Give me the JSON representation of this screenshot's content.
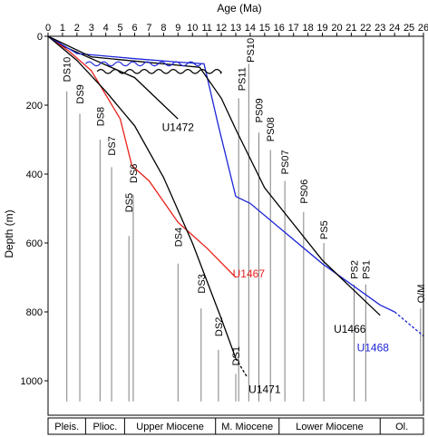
{
  "chart_data": {
    "type": "line",
    "xlabel": "Age (Ma)",
    "ylabel": "Depth (m)",
    "xlim": [
      0,
      26
    ],
    "ylim": [
      0,
      1100
    ],
    "x_ticks": [
      0,
      1,
      2,
      3,
      4,
      5,
      6,
      7,
      8,
      9,
      10,
      11,
      12,
      13,
      14,
      15,
      16,
      17,
      18,
      19,
      20,
      21,
      22,
      23,
      24,
      25,
      26
    ],
    "y_ticks": [
      0,
      200,
      400,
      600,
      800,
      1000
    ],
    "grid": false,
    "colors": {
      "black": "#000000",
      "red": "#e8201b",
      "blue": "#1c25d6",
      "marker": "#808080"
    },
    "markers": [
      {
        "label": "DS10",
        "age": 1.3,
        "top": 60
      },
      {
        "label": "DS9",
        "age": 2.2,
        "top": 140
      },
      {
        "label": "DS8",
        "age": 3.6,
        "top": 205
      },
      {
        "label": "DS7",
        "age": 4.4,
        "top": 290
      },
      {
        "label": "DS6",
        "age": 5.9,
        "top": 370
      },
      {
        "label": "DS5",
        "age": 5.6,
        "top": 455
      },
      {
        "label": "DS4",
        "age": 9.0,
        "top": 555
      },
      {
        "label": "DS3",
        "age": 10.6,
        "top": 690
      },
      {
        "label": "DS2",
        "age": 11.8,
        "top": 815
      },
      {
        "label": "DS1",
        "age": 13.0,
        "top": 900
      },
      {
        "label": "PS10",
        "age": 14.0,
        "top": 5
      },
      {
        "label": "PS11",
        "age": 13.4,
        "top": 90
      },
      {
        "label": "PS09",
        "age": 14.6,
        "top": 180
      },
      {
        "label": "PS08",
        "age": 15.4,
        "top": 235
      },
      {
        "label": "PS07",
        "age": 16.4,
        "top": 330
      },
      {
        "label": "PS06",
        "age": 17.7,
        "top": 415
      },
      {
        "label": "PS5",
        "age": 19.1,
        "top": 535
      },
      {
        "label": "PS2",
        "age": 21.2,
        "top": 650
      },
      {
        "label": "PS1",
        "age": 22.0,
        "top": 650
      },
      {
        "label": "O/M",
        "age": 25.8,
        "top": 720
      }
    ],
    "marker_lines": [
      {
        "age": 1.3,
        "from": 160,
        "to": 1060
      },
      {
        "age": 2.2,
        "from": 225,
        "to": 1060
      },
      {
        "age": 3.6,
        "from": 300,
        "to": 1060
      },
      {
        "age": 4.4,
        "from": 380,
        "to": 1060
      },
      {
        "age": 5.6,
        "from": 580,
        "to": 1060
      },
      {
        "age": 5.9,
        "from": 460,
        "to": 1060
      },
      {
        "age": 9.0,
        "from": 660,
        "to": 1060
      },
      {
        "age": 10.6,
        "from": 790,
        "to": 1060
      },
      {
        "age": 11.8,
        "from": 910,
        "to": 1060
      },
      {
        "age": 13.0,
        "from": 980,
        "to": 1060
      },
      {
        "age": 13.2,
        "from": 180,
        "to": 1060
      },
      {
        "age": 13.9,
        "from": 80,
        "to": 1060
      },
      {
        "age": 14.6,
        "from": 280,
        "to": 1060
      },
      {
        "age": 15.4,
        "from": 330,
        "to": 1060
      },
      {
        "age": 16.4,
        "from": 420,
        "to": 1060
      },
      {
        "age": 17.7,
        "from": 510,
        "to": 1060
      },
      {
        "age": 19.1,
        "from": 600,
        "to": 1060
      },
      {
        "age": 21.2,
        "from": 720,
        "to": 1060
      },
      {
        "age": 22.0,
        "from": 720,
        "to": 1060
      },
      {
        "age": 25.8,
        "from": 790,
        "to": 1060
      }
    ],
    "series": [
      {
        "name": "U1472",
        "color": "#000000",
        "label_age": 9.0,
        "label_depth": 275,
        "points": [
          [
            0,
            0
          ],
          [
            1,
            28
          ],
          [
            3,
            65
          ],
          [
            6,
            120
          ],
          [
            9,
            240
          ]
        ],
        "dashed_tail": []
      },
      {
        "name": "U1467",
        "color": "#e8201b",
        "label_age": 13.9,
        "label_depth": 700,
        "points": [
          [
            0,
            0
          ],
          [
            1.5,
            45
          ],
          [
            3,
            100
          ],
          [
            5,
            240
          ],
          [
            5.8,
            375
          ],
          [
            7,
            420
          ],
          [
            9,
            540
          ],
          [
            11,
            615
          ],
          [
            13,
            700
          ]
        ],
        "dashed_tail": []
      },
      {
        "name": "U1471",
        "color": "#000000",
        "label_age": 15.0,
        "label_depth": 1035,
        "points": [
          [
            0,
            0
          ],
          [
            2,
            70
          ],
          [
            4,
            160
          ],
          [
            6,
            260
          ],
          [
            8,
            410
          ],
          [
            10,
            600
          ],
          [
            12,
            820
          ],
          [
            13,
            935
          ]
        ],
        "dashed_tail": [
          [
            13,
            935
          ],
          [
            13.8,
            990
          ]
        ]
      },
      {
        "name": "U1468",
        "color": "#1c25d6",
        "label_age": 22.5,
        "label_depth": 915,
        "points": [
          [
            0,
            0
          ],
          [
            2,
            50
          ],
          [
            6,
            65
          ],
          [
            9,
            75
          ],
          [
            10.8,
            80
          ],
          [
            11.8,
            260
          ],
          [
            13,
            465
          ],
          [
            14,
            485
          ],
          [
            19,
            660
          ],
          [
            23,
            780
          ],
          [
            24,
            800
          ]
        ],
        "dashed_tail": [
          [
            24,
            800
          ],
          [
            26,
            870
          ]
        ]
      },
      {
        "name": "U1466",
        "color": "#000000",
        "label_age": 20.9,
        "label_depth": 860,
        "points": [
          [
            0,
            0
          ],
          [
            3,
            60
          ],
          [
            10.5,
            90
          ],
          [
            12,
            180
          ],
          [
            13,
            270
          ],
          [
            15,
            440
          ],
          [
            19,
            650
          ],
          [
            23,
            810
          ]
        ],
        "dashed_tail": []
      }
    ],
    "wavy_hiatuses": [
      {
        "color": "#1c25d6",
        "age_from": 2.6,
        "age_to": 10.6,
        "depth": 80
      },
      {
        "color": "#000000",
        "age_from": 3.4,
        "age_to": 12.0,
        "depth": 102
      }
    ],
    "epochs": [
      {
        "label": "Pleis.",
        "from": 0,
        "to": 2.6
      },
      {
        "label": "Plioc.",
        "from": 2.6,
        "to": 5.3
      },
      {
        "label": "Upper Miocene",
        "from": 5.3,
        "to": 11.6
      },
      {
        "label": "M. Miocene",
        "from": 11.6,
        "to": 16.0
      },
      {
        "label": "Lower Miocene",
        "from": 16.0,
        "to": 23.0
      },
      {
        "label": "Ol.",
        "from": 23.0,
        "to": 26.0
      }
    ]
  }
}
